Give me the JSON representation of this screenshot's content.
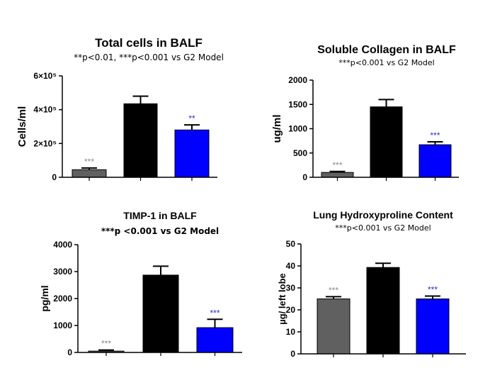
{
  "chart_data": [
    {
      "type": "bar",
      "title": "Total cells in BALF",
      "subtitle": "**p<0.01, ***p<0.001 vs G2 Model",
      "ylabel": "Cells/ml",
      "ylim": [
        0,
        600000
      ],
      "yticks": [
        0,
        200000,
        400000,
        600000
      ],
      "ytick_labels": [
        "0",
        "2×10⁵",
        "4×10⁵",
        "6×10⁵"
      ],
      "categories": [
        "",
        "",
        ""
      ],
      "values": [
        45000,
        435000,
        280000
      ],
      "errors": [
        10000,
        45000,
        30000
      ],
      "colors": [
        "#606060",
        "#000000",
        "#0000ff"
      ],
      "annotations": [
        "***",
        "",
        "**"
      ],
      "annotation_colors": [
        "#8a8a8a",
        "",
        "#2a2ad0"
      ]
    },
    {
      "type": "bar",
      "title": "Soluble Collagen in BALF",
      "subtitle": "***p<0.001 vs G2 Model",
      "ylabel": "ug/ml",
      "ylim": [
        0,
        2000
      ],
      "yticks": [
        0,
        500,
        1000,
        1500,
        2000
      ],
      "ytick_labels": [
        "0",
        "500",
        "1000",
        "1500",
        "2000"
      ],
      "categories": [
        "",
        "",
        ""
      ],
      "values": [
        100,
        1450,
        670
      ],
      "errors": [
        20,
        150,
        60
      ],
      "colors": [
        "#606060",
        "#000000",
        "#0000ff"
      ],
      "annotations": [
        "***",
        "",
        "***"
      ],
      "annotation_colors": [
        "#8a8a8a",
        "",
        "#2a2ad0"
      ]
    },
    {
      "type": "bar",
      "title": "TIMP-1 in BALF",
      "subtitle": "***p <0.001 vs G2 Model",
      "ylabel": "pg/ml",
      "ylim": [
        0,
        4000
      ],
      "yticks": [
        0,
        1000,
        2000,
        3000,
        4000
      ],
      "ytick_labels": [
        "0",
        "1000",
        "2000",
        "3000",
        "4000"
      ],
      "categories": [
        "",
        "",
        ""
      ],
      "values": [
        50,
        2870,
        920
      ],
      "errors": [
        40,
        330,
        310
      ],
      "colors": [
        "#606060",
        "#000000",
        "#0000ff"
      ],
      "annotations": [
        "***",
        "",
        "***"
      ],
      "annotation_colors": [
        "#8a8a8a",
        "",
        "#2a2ad0"
      ]
    },
    {
      "type": "bar",
      "title": "Lung Hydroxyproline Content",
      "subtitle": "***p<0.001 vs G2 Model",
      "ylabel": "µg/ left lobe",
      "ylim": [
        0,
        50
      ],
      "yticks": [
        0,
        10,
        20,
        30,
        40,
        50
      ],
      "ytick_labels": [
        "0",
        "10",
        "20",
        "30",
        "40",
        "50"
      ],
      "categories": [
        "",
        "",
        ""
      ],
      "values": [
        25,
        39.3,
        25
      ],
      "errors": [
        1,
        1.9,
        1.3
      ],
      "colors": [
        "#606060",
        "#000000",
        "#0000ff"
      ],
      "annotations": [
        "***",
        "",
        "***"
      ],
      "annotation_colors": [
        "#8a8a8a",
        "",
        "#2a2ad0"
      ]
    }
  ]
}
